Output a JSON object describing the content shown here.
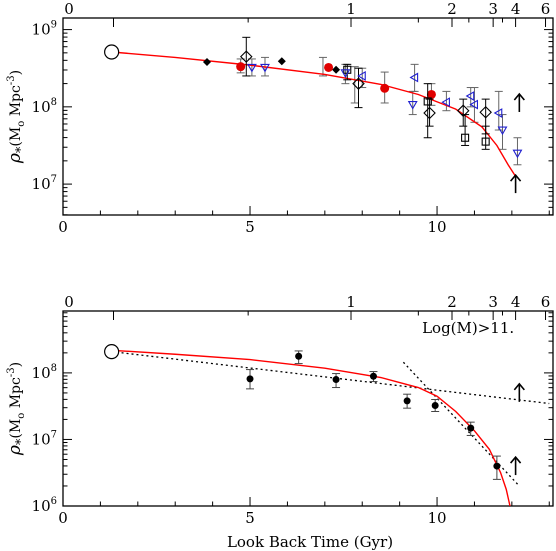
{
  "chart_data": [
    {
      "type": "scatter",
      "title": "",
      "xlabel": "",
      "ylabel": "ρ*(Mo Mpc-3)",
      "ylabel_parts": {
        "rho": "ρ",
        "sub": "*",
        "open": "(M",
        "msub": "o",
        "mid": " Mpc",
        "sup": "-3",
        "close": ")"
      },
      "xlim": [
        0,
        13.1
      ],
      "ylim_log10": [
        6.6,
        9.15
      ],
      "x_ticks": [
        {
          "v": 0,
          "label": "0"
        },
        {
          "v": 5,
          "label": "5"
        },
        {
          "v": 10,
          "label": "10"
        }
      ],
      "top_ticks": [
        {
          "v": 7.7,
          "label": "1"
        },
        {
          "v": 10.4,
          "label": "2"
        },
        {
          "v": 11.5,
          "label": "3"
        },
        {
          "v": 12.1,
          "label": "4"
        },
        {
          "v": 12.9,
          "label": "6"
        },
        {
          "v": 1.35,
          "label": "0"
        }
      ],
      "y_ticks": [
        {
          "e": 7,
          "base": "10",
          "exp": "7"
        },
        {
          "e": 8,
          "base": "10",
          "exp": "8"
        },
        {
          "e": 9,
          "base": "10",
          "exp": "9"
        }
      ],
      "model_curve": {
        "color": "#ff0000",
        "points": [
          [
            1.3,
            8.71
          ],
          [
            3,
            8.64
          ],
          [
            5,
            8.54
          ],
          [
            7,
            8.42
          ],
          [
            8.5,
            8.29
          ],
          [
            9.5,
            8.16
          ],
          [
            10.5,
            7.97
          ],
          [
            11.2,
            7.74
          ],
          [
            11.6,
            7.5
          ],
          [
            11.9,
            7.25
          ],
          [
            12.1,
            7.1
          ]
        ]
      },
      "open_circle": {
        "x": 1.3,
        "y": 8.71
      },
      "series": [
        {
          "marker": "diamond-filled",
          "color": "#000000",
          "points": [
            {
              "x": 3.85,
              "y": 8.58
            },
            {
              "x": 5.85,
              "y": 8.59
            },
            {
              "x": 7.3,
              "y": 8.48
            }
          ]
        },
        {
          "marker": "circle-filled",
          "color": "#e00000",
          "points": [
            {
              "x": 4.75,
              "y": 8.52
            },
            {
              "x": 7.1,
              "y": 8.51
            },
            {
              "x": 8.6,
              "y": 8.24
            },
            {
              "x": 9.85,
              "y": 8.16
            }
          ]
        },
        {
          "marker": "diamond-open",
          "color": "#000000",
          "points": [
            {
              "x": 4.9,
              "y": 8.65,
              "hi": 8.9,
              "lo": 8.4
            },
            {
              "x": 7.9,
              "y": 8.3,
              "hi": 8.5,
              "lo": 7.99
            },
            {
              "x": 9.8,
              "y": 7.92,
              "hi": 8.1,
              "lo": 7.75
            },
            {
              "x": 10.7,
              "y": 7.95,
              "hi": 8.1,
              "lo": 7.75
            },
            {
              "x": 11.3,
              "y": 7.93,
              "hi": 8.1,
              "lo": 7.65
            }
          ]
        },
        {
          "marker": "square-open",
          "color": "#000000",
          "points": [
            {
              "x": 7.6,
              "y": 8.48,
              "hi": 8.55,
              "lo": 8.35
            },
            {
              "x": 9.75,
              "y": 8.07,
              "hi": 8.3,
              "lo": 7.6
            },
            {
              "x": 10.75,
              "y": 7.6,
              "hi": 7.9,
              "lo": 7.5
            },
            {
              "x": 11.3,
              "y": 7.55,
              "hi": 7.75,
              "lo": 7.45
            }
          ]
        },
        {
          "marker": "triangle-down",
          "color": "#2020d0",
          "points": [
            {
              "x": 5.05,
              "y": 8.51
            },
            {
              "x": 5.4,
              "y": 8.51
            },
            {
              "x": 7.55,
              "y": 8.44
            },
            {
              "x": 9.35,
              "y": 8.03
            },
            {
              "x": 11.75,
              "y": 7.7
            },
            {
              "x": 12.15,
              "y": 7.4
            }
          ]
        },
        {
          "marker": "triangle-left",
          "color": "#2020d0",
          "points": [
            {
              "x": 8.0,
              "y": 8.4
            },
            {
              "x": 9.4,
              "y": 8.38
            },
            {
              "x": 10.25,
              "y": 8.06
            },
            {
              "x": 10.9,
              "y": 8.14
            },
            {
              "x": 11.0,
              "y": 8.03
            },
            {
              "x": 11.65,
              "y": 7.92
            }
          ]
        }
      ],
      "gray_error_bars": [
        [
          4.75,
          8.62,
          8.44
        ],
        [
          5.05,
          8.62,
          8.4
        ],
        [
          5.4,
          8.64,
          8.4
        ],
        [
          6.95,
          8.64,
          8.4
        ],
        [
          7.55,
          8.55,
          8.3
        ],
        [
          7.8,
          8.52,
          8.05
        ],
        [
          8.0,
          8.5,
          8.25
        ],
        [
          8.6,
          8.45,
          8.05
        ],
        [
          9.35,
          8.2,
          7.9
        ],
        [
          9.4,
          8.55,
          8.2
        ],
        [
          9.85,
          8.3,
          8.02
        ],
        [
          10.25,
          8.2,
          7.95
        ],
        [
          10.9,
          8.25,
          8.0
        ],
        [
          11.0,
          8.25,
          7.8
        ],
        [
          11.65,
          8.2,
          7.7
        ],
        [
          11.75,
          7.9,
          7.45
        ],
        [
          12.15,
          7.6,
          7.25
        ]
      ],
      "lower_limits": [
        {
          "x": 12.2,
          "y": 8.05
        },
        {
          "x": 12.1,
          "y": 7.0
        }
      ]
    },
    {
      "type": "scatter",
      "title": "",
      "xlabel": "Look Back Time (Gyr)",
      "ylabel": "ρ*(Mo Mpc-3)",
      "ylabel_parts": {
        "rho": "ρ",
        "sub": "*",
        "open": "(M",
        "msub": "o",
        "mid": " Mpc",
        "sup": "-3",
        "close": ")"
      },
      "annotation": "Log(M)>11.",
      "xlim": [
        0,
        13.1
      ],
      "ylim_log10": [
        6.0,
        8.93
      ],
      "x_ticks": [
        {
          "v": 0,
          "label": "0"
        },
        {
          "v": 5,
          "label": "5"
        },
        {
          "v": 10,
          "label": "10"
        }
      ],
      "top_ticks": [
        {
          "v": 7.7,
          "label": "1"
        },
        {
          "v": 10.4,
          "label": "2"
        },
        {
          "v": 11.5,
          "label": "3"
        },
        {
          "v": 12.1,
          "label": "4"
        },
        {
          "v": 12.9,
          "label": "6"
        },
        {
          "v": 1.35,
          "label": "0"
        }
      ],
      "y_ticks": [
        {
          "e": 6,
          "base": "10",
          "exp": "6"
        },
        {
          "e": 7,
          "base": "10",
          "exp": "7"
        },
        {
          "e": 8,
          "base": "10",
          "exp": "8"
        }
      ],
      "model_curve": {
        "color": "#ff0000",
        "points": [
          [
            1.3,
            8.34
          ],
          [
            3,
            8.28
          ],
          [
            5,
            8.2
          ],
          [
            7,
            8.07
          ],
          [
            8.5,
            7.93
          ],
          [
            9.5,
            7.78
          ],
          [
            10.0,
            7.65
          ],
          [
            10.5,
            7.42
          ],
          [
            11.0,
            7.13
          ],
          [
            11.4,
            6.85
          ],
          [
            11.7,
            6.5
          ],
          [
            11.85,
            6.25
          ],
          [
            11.95,
            6.0
          ]
        ]
      },
      "fit_lines": [
        {
          "points": [
            [
              1.3,
              8.32
            ],
            [
              13.0,
              7.54
            ]
          ]
        },
        {
          "points": [
            [
              9.1,
              8.16
            ],
            [
              12.2,
              6.3
            ]
          ]
        }
      ],
      "open_circle": {
        "x": 1.3,
        "y": 8.32
      },
      "series": [
        {
          "marker": "circle-filled",
          "color": "#000000",
          "points": [
            {
              "x": 5.0,
              "y": 7.91,
              "hi": 8.05,
              "lo": 7.76
            },
            {
              "x": 6.3,
              "y": 8.25,
              "hi": 8.33,
              "lo": 8.14
            },
            {
              "x": 7.3,
              "y": 7.9,
              "hi": 7.99,
              "lo": 7.78
            },
            {
              "x": 8.3,
              "y": 7.95,
              "hi": 8.02,
              "lo": 7.87
            },
            {
              "x": 9.2,
              "y": 7.58,
              "hi": 7.68,
              "lo": 7.47
            },
            {
              "x": 9.95,
              "y": 7.51,
              "hi": 7.6,
              "lo": 7.42
            },
            {
              "x": 10.9,
              "y": 7.17,
              "hi": 7.26,
              "lo": 7.06
            },
            {
              "x": 11.6,
              "y": 6.6,
              "hi": 6.75,
              "lo": 6.4
            }
          ]
        }
      ],
      "lower_limits": [
        {
          "x": 12.2,
          "y": 7.7
        },
        {
          "x": 12.1,
          "y": 6.6
        }
      ]
    }
  ]
}
